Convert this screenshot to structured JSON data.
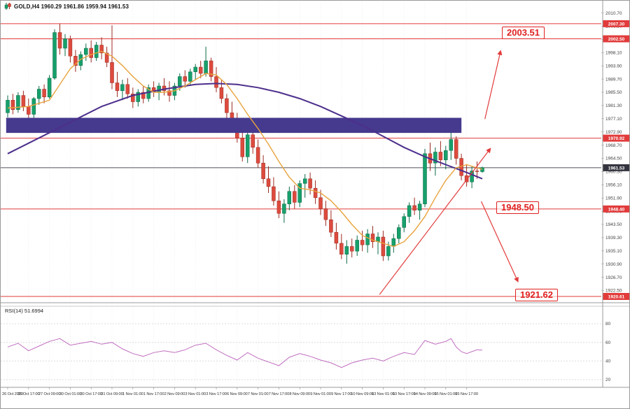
{
  "header": {
    "title": "GOLD,H4  1960.29 1961.86 1959.94 1961.53"
  },
  "colors": {
    "bull": "#17a06b",
    "bull_border": "#0b6b47",
    "bear": "#dd4b3e",
    "bear_border": "#9c2b21",
    "ma_fast": "#e8a33d",
    "ma_slow": "#4d2f8c",
    "zone": "#453a8e",
    "level": "#e23b3b",
    "annotation": "#e02020",
    "rsi": "#c06ec0",
    "axis_text": "#444444",
    "current_badge": "#34343f",
    "grid": "#efefef"
  },
  "chart_data": {
    "type": "candlestick",
    "symbol": "GOLD",
    "timeframe": "H4",
    "title": "GOLD,H4  1960.29 1961.86 1959.94 1961.53",
    "price_axis_range": {
      "top": 2012.4,
      "bottom": 1918.6
    },
    "y_ticks": [
      2010.7,
      2006.5,
      2002.3,
      1998.1,
      1993.9,
      1989.7,
      1985.5,
      1981.3,
      1977.1,
      1972.9,
      1968.7,
      1964.5,
      1960.3,
      1956.1,
      1951.9,
      1947.7,
      1943.5,
      1939.3,
      1935.1,
      1930.9,
      1926.7,
      1922.5
    ],
    "x_labels": [
      "26 Oct 2023",
      "26 Oct 17:00",
      "27 Oct 09:00",
      "30 Oct 01:00",
      "30 Oct 17:00",
      "31 Oct 09:00",
      "1 Nov 01:00",
      "1 Nov 17:00",
      "2 Nov 09:00",
      "3 Nov 01:00",
      "3 Nov 17:00",
      "6 Nov 09:00",
      "7 Nov 01:00",
      "7 Nov 17:00",
      "8 Nov 09:00",
      "9 Nov 01:00",
      "9 Nov 17:00",
      "10 Nov 09:00",
      "13 Nov 01:00",
      "13 Nov 17:00",
      "14 Nov 09:00",
      "15 Nov 01:00",
      "15 Nov 17:00"
    ],
    "ohlc": [
      [
        1979.0,
        1984.5,
        1977.5,
        1983.0
      ],
      [
        1983.0,
        1985.0,
        1978.5,
        1980.0
      ],
      [
        1980.0,
        1985.5,
        1979.0,
        1984.5
      ],
      [
        1984.5,
        1986.0,
        1979.5,
        1981.0
      ],
      [
        1981.0,
        1983.5,
        1976.5,
        1978.5
      ],
      [
        1978.5,
        1984.0,
        1977.0,
        1983.5
      ],
      [
        1983.5,
        1987.5,
        1981.5,
        1986.5
      ],
      [
        1986.5,
        1988.0,
        1982.0,
        1984.0
      ],
      [
        1984.0,
        1991.0,
        1983.5,
        1990.0
      ],
      [
        1990.0,
        2005.5,
        1989.5,
        2004.5
      ],
      [
        2004.5,
        2007.3,
        1997.5,
        1999.5
      ],
      [
        1999.5,
        2004.0,
        1997.0,
        2002.5
      ],
      [
        2002.5,
        2003.5,
        1995.0,
        1997.0
      ],
      [
        1997.0,
        1999.0,
        1992.0,
        1994.0
      ],
      [
        1994.0,
        1998.5,
        1992.5,
        1997.5
      ],
      [
        1997.5,
        2001.0,
        1995.5,
        1999.5
      ],
      [
        1999.5,
        2002.0,
        1995.0,
        1996.5
      ],
      [
        1996.5,
        2001.5,
        1995.5,
        2000.5
      ],
      [
        2000.5,
        2003.0,
        1996.0,
        1998.0
      ],
      [
        1998.0,
        2000.0,
        1993.5,
        1995.0
      ],
      [
        1995.0,
        2006.8,
        1986.5,
        1988.5
      ],
      [
        1988.5,
        1992.0,
        1984.0,
        1986.0
      ],
      [
        1986.0,
        1989.5,
        1983.0,
        1988.0
      ],
      [
        1988.0,
        1990.0,
        1983.5,
        1985.0
      ],
      [
        1985.0,
        1987.0,
        1980.5,
        1982.5
      ],
      [
        1982.5,
        1986.5,
        1981.0,
        1985.5
      ],
      [
        1985.5,
        1987.5,
        1982.0,
        1983.5
      ],
      [
        1983.5,
        1988.0,
        1982.5,
        1987.0
      ],
      [
        1987.0,
        1989.0,
        1984.0,
        1985.5
      ],
      [
        1985.5,
        1988.5,
        1983.0,
        1987.5
      ],
      [
        1987.5,
        1990.0,
        1984.5,
        1986.0
      ],
      [
        1986.0,
        1989.0,
        1982.5,
        1984.5
      ],
      [
        1984.5,
        1988.5,
        1983.0,
        1987.5
      ],
      [
        1987.5,
        1991.5,
        1986.0,
        1990.5
      ],
      [
        1990.5,
        1992.5,
        1987.0,
        1989.0
      ],
      [
        1989.0,
        1993.0,
        1987.5,
        1992.0
      ],
      [
        1992.0,
        1994.5,
        1989.5,
        1993.5
      ],
      [
        1993.5,
        1995.5,
        1990.0,
        1991.5
      ],
      [
        1991.5,
        2000.0,
        1990.5,
        1995.5
      ],
      [
        1995.5,
        1996.5,
        1989.0,
        1990.5
      ],
      [
        1990.5,
        1993.5,
        1985.5,
        1987.0
      ],
      [
        1987.0,
        1989.5,
        1982.0,
        1983.5
      ],
      [
        1983.5,
        1985.0,
        1977.0,
        1979.0
      ],
      [
        1979.0,
        1982.5,
        1974.5,
        1976.0
      ],
      [
        1976.0,
        1979.0,
        1969.5,
        1971.0
      ],
      [
        1971.0,
        1974.0,
        1963.5,
        1965.0
      ],
      [
        1965.0,
        1973.5,
        1963.0,
        1972.0
      ],
      [
        1972.0,
        1973.0,
        1966.0,
        1968.0
      ],
      [
        1968.0,
        1970.5,
        1961.5,
        1963.0
      ],
      [
        1963.0,
        1965.5,
        1956.5,
        1958.0
      ],
      [
        1958.0,
        1962.0,
        1953.5,
        1955.5
      ],
      [
        1955.5,
        1958.5,
        1949.5,
        1951.0
      ],
      [
        1951.0,
        1954.0,
        1945.5,
        1947.0
      ],
      [
        1947.0,
        1951.5,
        1944.0,
        1950.0
      ],
      [
        1950.0,
        1955.5,
        1948.0,
        1954.0
      ],
      [
        1954.0,
        1956.0,
        1948.5,
        1950.5
      ],
      [
        1950.5,
        1957.5,
        1949.0,
        1956.5
      ],
      [
        1956.5,
        1959.5,
        1952.0,
        1958.0
      ],
      [
        1958.0,
        1960.0,
        1953.0,
        1955.0
      ],
      [
        1955.0,
        1957.5,
        1950.0,
        1952.0
      ],
      [
        1952.0,
        1954.5,
        1946.5,
        1948.5
      ],
      [
        1948.5,
        1951.0,
        1943.0,
        1945.0
      ],
      [
        1945.0,
        1948.0,
        1939.5,
        1941.0
      ],
      [
        1941.0,
        1944.0,
        1935.5,
        1937.5
      ],
      [
        1937.5,
        1940.5,
        1932.5,
        1934.0
      ],
      [
        1934.0,
        1938.5,
        1931.0,
        1936.5
      ],
      [
        1936.5,
        1939.0,
        1933.0,
        1935.0
      ],
      [
        1935.0,
        1940.0,
        1933.5,
        1938.5
      ],
      [
        1938.5,
        1941.5,
        1935.0,
        1937.0
      ],
      [
        1937.0,
        1942.0,
        1934.5,
        1940.5
      ],
      [
        1940.5,
        1943.0,
        1936.0,
        1938.0
      ],
      [
        1938.0,
        1941.0,
        1934.0,
        1939.5
      ],
      [
        1939.5,
        1941.5,
        1931.9,
        1933.5
      ],
      [
        1933.5,
        1938.0,
        1932.0,
        1936.5
      ],
      [
        1936.5,
        1940.5,
        1934.5,
        1939.0
      ],
      [
        1939.0,
        1943.5,
        1937.5,
        1942.5
      ],
      [
        1942.5,
        1947.0,
        1941.0,
        1946.0
      ],
      [
        1946.0,
        1950.5,
        1944.0,
        1949.5
      ],
      [
        1949.5,
        1952.0,
        1946.5,
        1948.0
      ],
      [
        1948.0,
        1951.0,
        1945.0,
        1950.0
      ],
      [
        1950.0,
        1967.5,
        1949.0,
        1966.0
      ],
      [
        1966.0,
        1969.5,
        1960.5,
        1963.0
      ],
      [
        1963.0,
        1968.0,
        1959.0,
        1966.5
      ],
      [
        1966.5,
        1970.0,
        1962.0,
        1964.0
      ],
      [
        1964.0,
        1968.5,
        1961.0,
        1967.0
      ],
      [
        1967.0,
        1974.6,
        1964.0,
        1970.5
      ],
      [
        1970.5,
        1971.5,
        1962.5,
        1964.5
      ],
      [
        1964.5,
        1966.0,
        1957.5,
        1959.0
      ],
      [
        1959.0,
        1962.5,
        1955.5,
        1957.0
      ],
      [
        1957.0,
        1962.0,
        1955.0,
        1960.5
      ],
      [
        1960.5,
        1963.5,
        1958.0,
        1960.29
      ],
      [
        1960.29,
        1961.86,
        1959.94,
        1961.53
      ]
    ],
    "ma_fast": [
      [
        0,
        1980.5
      ],
      [
        4,
        1981.0
      ],
      [
        8,
        1983.0
      ],
      [
        10,
        1988.0
      ],
      [
        12,
        1993.0
      ],
      [
        14,
        1996.0
      ],
      [
        16,
        1997.5
      ],
      [
        18,
        1998.5
      ],
      [
        20,
        1997.0
      ],
      [
        22,
        1994.0
      ],
      [
        24,
        1990.5
      ],
      [
        26,
        1987.5
      ],
      [
        28,
        1985.5
      ],
      [
        30,
        1985.5
      ],
      [
        32,
        1986.0
      ],
      [
        34,
        1987.5
      ],
      [
        36,
        1989.5
      ],
      [
        38,
        1991.5
      ],
      [
        40,
        1991.0
      ],
      [
        42,
        1988.0
      ],
      [
        44,
        1983.5
      ],
      [
        46,
        1978.5
      ],
      [
        48,
        1974.0
      ],
      [
        50,
        1969.0
      ],
      [
        52,
        1963.5
      ],
      [
        54,
        1958.5
      ],
      [
        56,
        1955.0
      ],
      [
        58,
        1954.5
      ],
      [
        60,
        1953.5
      ],
      [
        62,
        1951.0
      ],
      [
        64,
        1947.5
      ],
      [
        66,
        1943.5
      ],
      [
        68,
        1940.0
      ],
      [
        70,
        1938.5
      ],
      [
        72,
        1937.5
      ],
      [
        74,
        1936.5
      ],
      [
        76,
        1938.0
      ],
      [
        78,
        1941.5
      ],
      [
        80,
        1946.0
      ],
      [
        82,
        1952.0
      ],
      [
        84,
        1957.5
      ],
      [
        86,
        1961.5
      ],
      [
        88,
        1962.5
      ],
      [
        90,
        1961.5
      ],
      [
        91,
        1961.0
      ]
    ],
    "ma_slow": [
      [
        0,
        1966.0
      ],
      [
        6,
        1971.0
      ],
      [
        12,
        1976.0
      ],
      [
        18,
        1981.0
      ],
      [
        24,
        1984.5
      ],
      [
        30,
        1986.5
      ],
      [
        36,
        1988.0
      ],
      [
        40,
        1988.3
      ],
      [
        44,
        1988.0
      ],
      [
        48,
        1987.0
      ],
      [
        52,
        1985.5
      ],
      [
        56,
        1983.5
      ],
      [
        60,
        1981.0
      ],
      [
        64,
        1978.0
      ],
      [
        68,
        1975.0
      ],
      [
        72,
        1971.5
      ],
      [
        76,
        1968.0
      ],
      [
        80,
        1965.0
      ],
      [
        84,
        1962.5
      ],
      [
        88,
        1960.0
      ],
      [
        91,
        1958.0
      ]
    ],
    "supply_zone": {
      "start_index": -0.3,
      "end_index": 87,
      "price_top": 1977.4,
      "price_bottom": 1972.6
    },
    "levels": [
      {
        "price": 2007.3,
        "label": "2007.30"
      },
      {
        "price": 2002.5,
        "label": "2002.50"
      },
      {
        "price": 1970.92,
        "label": "1970.92"
      },
      {
        "price": 1948.4,
        "label": "1948.40"
      },
      {
        "price": 1920.61,
        "label": "1920.61"
      }
    ],
    "current_price": {
      "price": 1961.53,
      "label": "1961.53"
    },
    "annotations": [
      {
        "text": "2003.51",
        "price": 2003.51
      },
      {
        "text": "1948.50",
        "price": 1948.5
      },
      {
        "text": "1921.62",
        "price": 1921.62
      }
    ],
    "trendline": {
      "from": {
        "index": 71.3,
        "price": 1921.2
      },
      "to": {
        "index": 92.5,
        "price": 1967.5
      }
    },
    "arrows": [
      {
        "name": "projection-up",
        "from": {
          "index": 91.5,
          "price": 1977.0
        },
        "to": {
          "index": 94.5,
          "price": 1998.5
        }
      },
      {
        "name": "projection-down",
        "from": {
          "index": 90.8,
          "price": 1950.8
        },
        "to": {
          "index": 97.8,
          "price": 1925.5
        }
      }
    ],
    "rsi": {
      "label": "RSI(14) 51.6994",
      "period": 14,
      "value": 51.6994,
      "ticks": [
        80,
        60,
        40,
        20
      ],
      "points": [
        [
          0,
          55
        ],
        [
          2,
          59
        ],
        [
          4,
          51
        ],
        [
          6,
          56
        ],
        [
          8,
          61
        ],
        [
          10,
          64
        ],
        [
          12,
          57
        ],
        [
          14,
          59
        ],
        [
          16,
          61
        ],
        [
          18,
          58
        ],
        [
          20,
          60
        ],
        [
          22,
          53
        ],
        [
          24,
          48
        ],
        [
          26,
          45
        ],
        [
          28,
          49
        ],
        [
          30,
          51
        ],
        [
          32,
          49
        ],
        [
          34,
          52
        ],
        [
          36,
          57
        ],
        [
          38,
          59
        ],
        [
          40,
          52
        ],
        [
          42,
          46
        ],
        [
          44,
          41
        ],
        [
          46,
          49
        ],
        [
          48,
          43
        ],
        [
          50,
          39
        ],
        [
          52,
          35
        ],
        [
          54,
          44
        ],
        [
          56,
          48
        ],
        [
          58,
          45
        ],
        [
          60,
          41
        ],
        [
          62,
          38
        ],
        [
          64,
          33
        ],
        [
          66,
          38
        ],
        [
          68,
          41
        ],
        [
          70,
          43
        ],
        [
          72,
          40
        ],
        [
          74,
          45
        ],
        [
          76,
          49
        ],
        [
          78,
          47
        ],
        [
          80,
          62
        ],
        [
          82,
          58
        ],
        [
          84,
          61
        ],
        [
          85,
          64
        ],
        [
          86,
          55
        ],
        [
          87,
          50
        ],
        [
          88,
          48
        ],
        [
          90,
          52
        ],
        [
          91,
          51.7
        ]
      ]
    }
  }
}
